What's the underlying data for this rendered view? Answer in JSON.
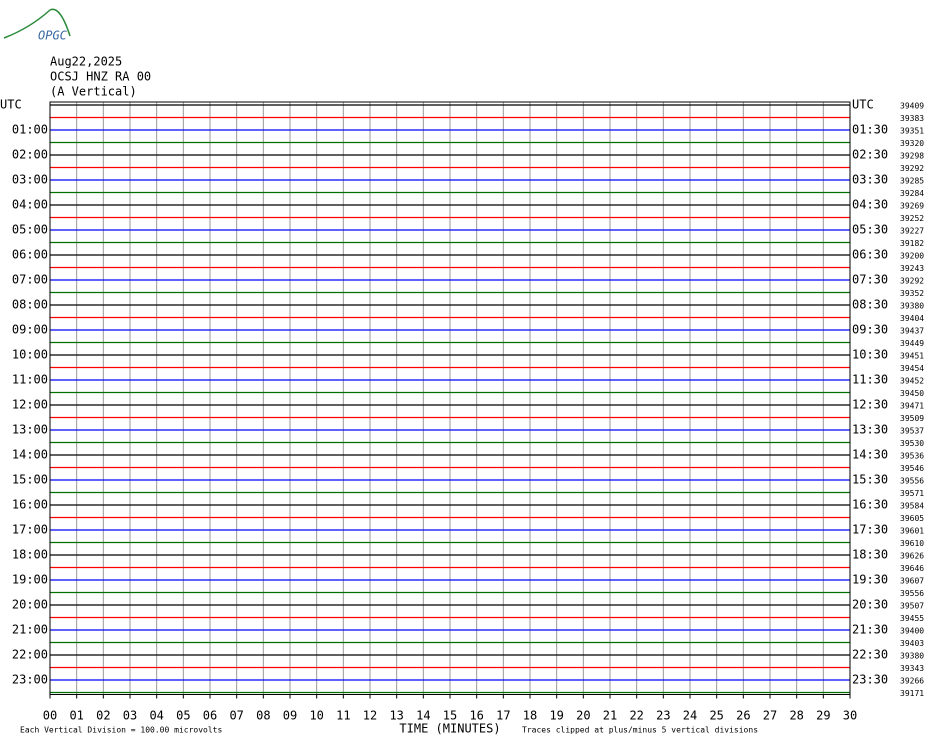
{
  "chart_data": {
    "type": "helicorder",
    "logo": "OPGC",
    "date": "Aug22,2025",
    "station": "OCSJ HNZ RA 00",
    "component": "(A Vertical)",
    "left_labels": [
      "UTC",
      "01:00",
      "02:00",
      "03:00",
      "04:00",
      "05:00",
      "06:00",
      "07:00",
      "08:00",
      "09:00",
      "10:00",
      "11:00",
      "12:00",
      "13:00",
      "14:00",
      "15:00",
      "16:00",
      "17:00",
      "18:00",
      "19:00",
      "20:00",
      "21:00",
      "22:00",
      "23:00"
    ],
    "right_labels": [
      "UTC",
      "01:30",
      "02:30",
      "03:30",
      "04:30",
      "05:30",
      "06:30",
      "07:30",
      "08:30",
      "09:30",
      "10:30",
      "11:30",
      "12:30",
      "13:30",
      "14:30",
      "15:30",
      "16:30",
      "17:30",
      "18:30",
      "19:30",
      "20:30",
      "21:30",
      "22:30",
      "23:30"
    ],
    "trace_counts": [
      39409,
      39383,
      39351,
      39320,
      39298,
      39292,
      39285,
      39284,
      39269,
      39252,
      39227,
      39182,
      39200,
      39243,
      39292,
      39352,
      39380,
      39404,
      39437,
      39449,
      39451,
      39454,
      39452,
      39450,
      39471,
      39509,
      39537,
      39530,
      39536,
      39546,
      39556,
      39571,
      39584,
      39605,
      39601,
      39610,
      39626,
      39646,
      39607,
      39556,
      39507,
      39455,
      39400,
      39403,
      39380,
      39343,
      39266,
      39171
    ],
    "trace_colors": [
      "#000000",
      "#ff0000",
      "#0000ff",
      "#007000"
    ],
    "xlabel": "TIME (MINUTES)",
    "xlim": [
      0,
      30
    ],
    "xticks": [
      {
        "value": 0,
        "label": "00"
      },
      {
        "value": 1,
        "label": "01"
      },
      {
        "value": 2,
        "label": "02"
      },
      {
        "value": 3,
        "label": "03"
      },
      {
        "value": 4,
        "label": "04"
      },
      {
        "value": 5,
        "label": "05"
      },
      {
        "value": 6,
        "label": "06"
      },
      {
        "value": 7,
        "label": "07"
      },
      {
        "value": 8,
        "label": "08"
      },
      {
        "value": 9,
        "label": "09"
      },
      10,
      11,
      12,
      13,
      14,
      15,
      16,
      17,
      18,
      19,
      20,
      21,
      22,
      23,
      24,
      25,
      26,
      27,
      28,
      29,
      30
    ],
    "scale_note": "Each Vertical Division =  100.00 microvolts",
    "clip_note": "Traces clipped at plus/minus 5 vertical divisions",
    "grid": true
  }
}
